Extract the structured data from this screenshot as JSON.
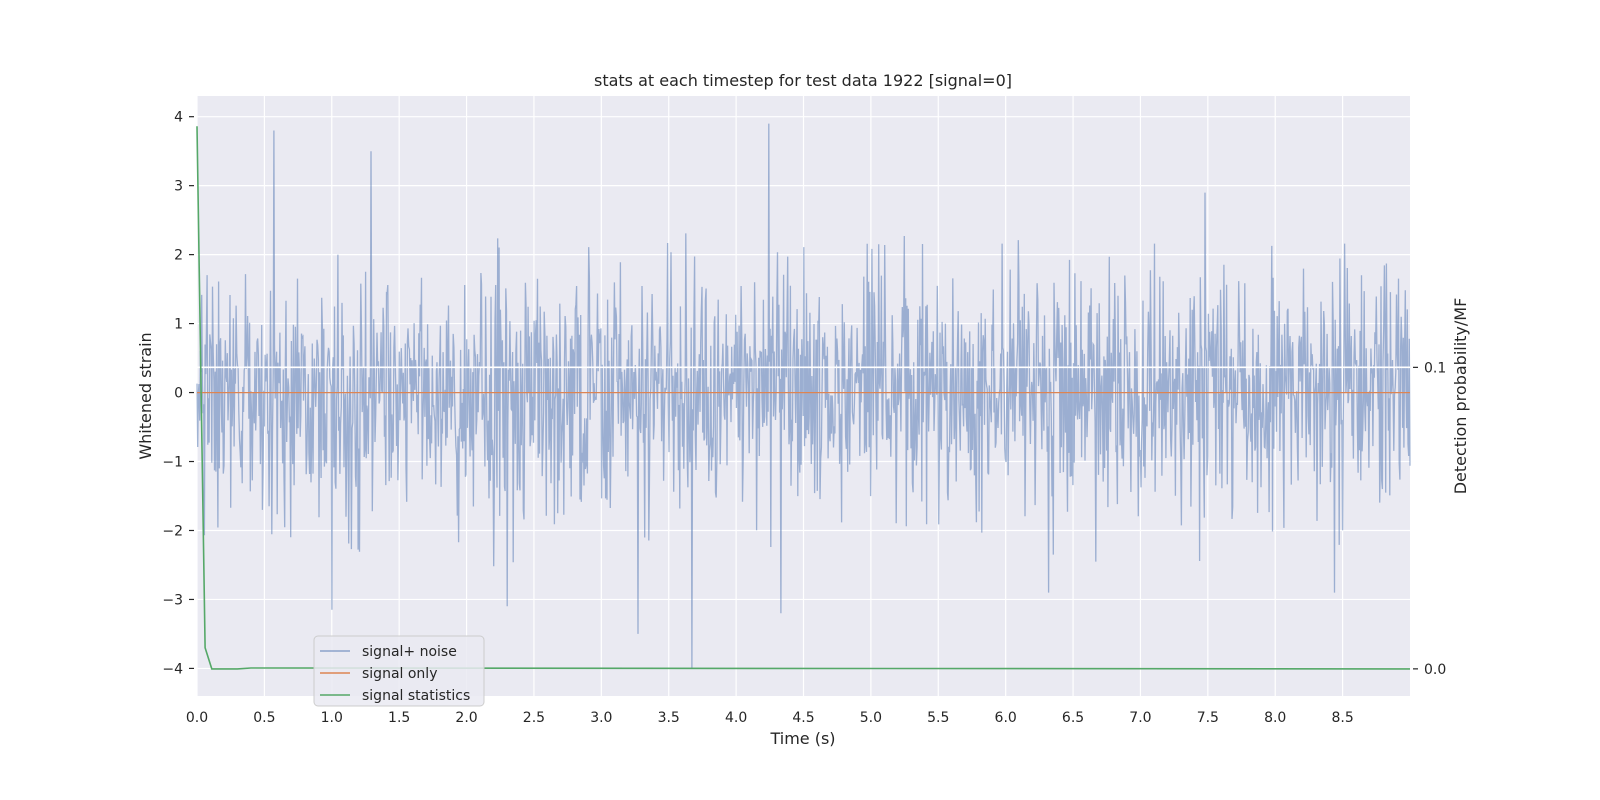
{
  "chart_data": {
    "type": "line",
    "title": "stats at each timestep for test data 1922 [signal=0]",
    "xlabel": "Time (s)",
    "ylabel": "Whitened strain",
    "y2label": "Detection probability/MF",
    "xlim": [
      0,
      9.0
    ],
    "ylim": [
      -4.4,
      4.3
    ],
    "y2lim": [
      -0.009,
      0.19
    ],
    "x_ticks": [
      "0.0",
      "0.5",
      "1.0",
      "1.5",
      "2.0",
      "2.5",
      "3.0",
      "3.5",
      "4.0",
      "4.5",
      "5.0",
      "5.5",
      "6.0",
      "6.5",
      "7.0",
      "7.5",
      "8.0",
      "8.5"
    ],
    "y_ticks": [
      "4",
      "3",
      "2",
      "1",
      "0",
      "−1",
      "−2",
      "−3",
      "−4"
    ],
    "y2_ticks": [
      "0.1",
      "0.0"
    ],
    "grid": true,
    "legend_position": "lower-left",
    "series": [
      {
        "name": "signal+ noise",
        "color": "#4c72b0",
        "axis": "left",
        "description_of_values": "noise",
        "x_range": [
          0,
          9.0
        ],
        "samples": 1800,
        "amplitude_std": 0.85,
        "spikes": [
          {
            "x": 0.57,
            "y": 3.8
          },
          {
            "x": 1.29,
            "y": 3.5
          },
          {
            "x": 4.24,
            "y": 3.9
          },
          {
            "x": 3.67,
            "y": -4.0
          },
          {
            "x": 3.27,
            "y": -3.5
          },
          {
            "x": 1.0,
            "y": -3.15
          },
          {
            "x": 2.3,
            "y": -3.1
          },
          {
            "x": 4.33,
            "y": -3.2
          }
        ]
      },
      {
        "name": "signal only",
        "color": "#dd8452",
        "axis": "left",
        "x": [
          0,
          9.0
        ],
        "y": [
          0,
          0
        ]
      },
      {
        "name": "signal statistics",
        "color": "#55a868",
        "axis": "right",
        "x": [
          0.0,
          0.06,
          0.11,
          0.3,
          0.4,
          9.0
        ],
        "y": [
          0.18,
          0.007,
          0.0,
          0.0,
          0.0003,
          0.0
        ]
      }
    ],
    "hline_right_axis": 0.1
  }
}
